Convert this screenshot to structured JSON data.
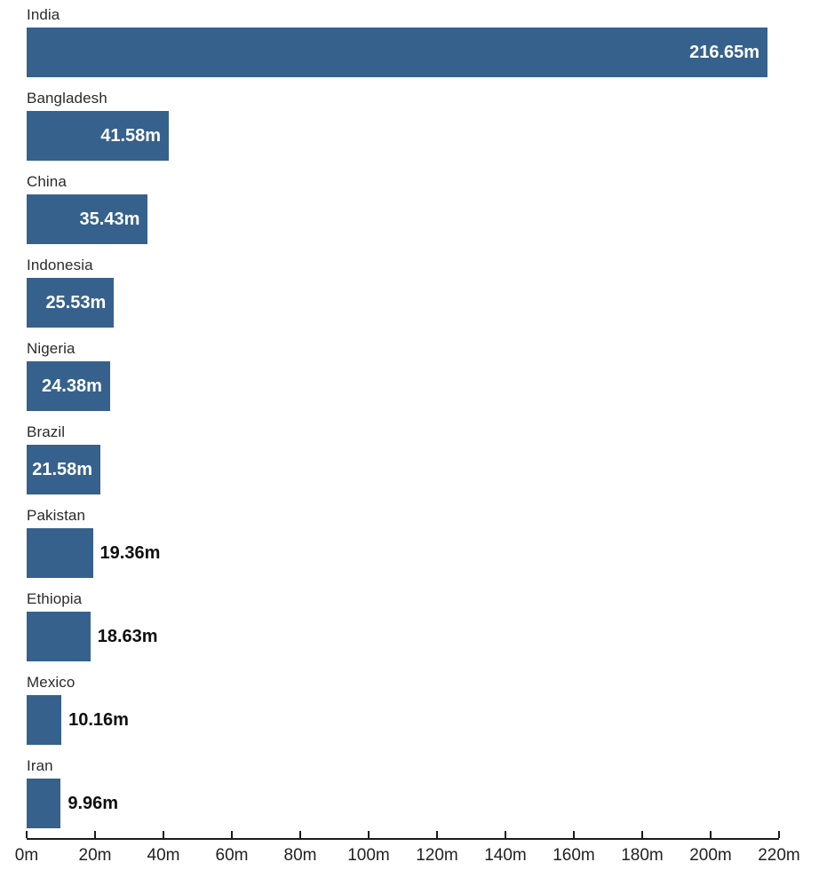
{
  "chart_data": {
    "type": "bar",
    "orientation": "horizontal",
    "title": "",
    "xlabel": "",
    "ylabel": "",
    "categories": [
      "India",
      "Bangladesh",
      "China",
      "Indonesia",
      "Nigeria",
      "Brazil",
      "Pakistan",
      "Ethiopia",
      "Mexico",
      "Iran"
    ],
    "values": [
      216.65,
      41.58,
      35.43,
      25.53,
      24.38,
      21.58,
      19.36,
      18.63,
      10.16,
      9.96
    ],
    "value_labels": [
      "216.65m",
      "41.58m",
      "35.43m",
      "25.53m",
      "24.38m",
      "21.58m",
      "19.36m",
      "18.63m",
      "10.16m",
      "9.96m"
    ],
    "label_inside": [
      true,
      true,
      true,
      true,
      true,
      true,
      false,
      false,
      false,
      false
    ],
    "xlim": [
      0,
      220
    ],
    "x_tick_values": [
      0,
      20,
      40,
      60,
      80,
      100,
      120,
      140,
      160,
      180,
      200,
      220
    ],
    "x_tick_labels": [
      "0m",
      "20m",
      "40m",
      "60m",
      "80m",
      "100m",
      "120m",
      "140m",
      "160m",
      "180m",
      "200m",
      "220m"
    ],
    "grid": "off",
    "legend": "none",
    "bar_color": "#36618C",
    "inside_label_color": "#ffffff",
    "outside_label_color": "#0f0f0f",
    "axis_color": "#1a1a1a"
  }
}
